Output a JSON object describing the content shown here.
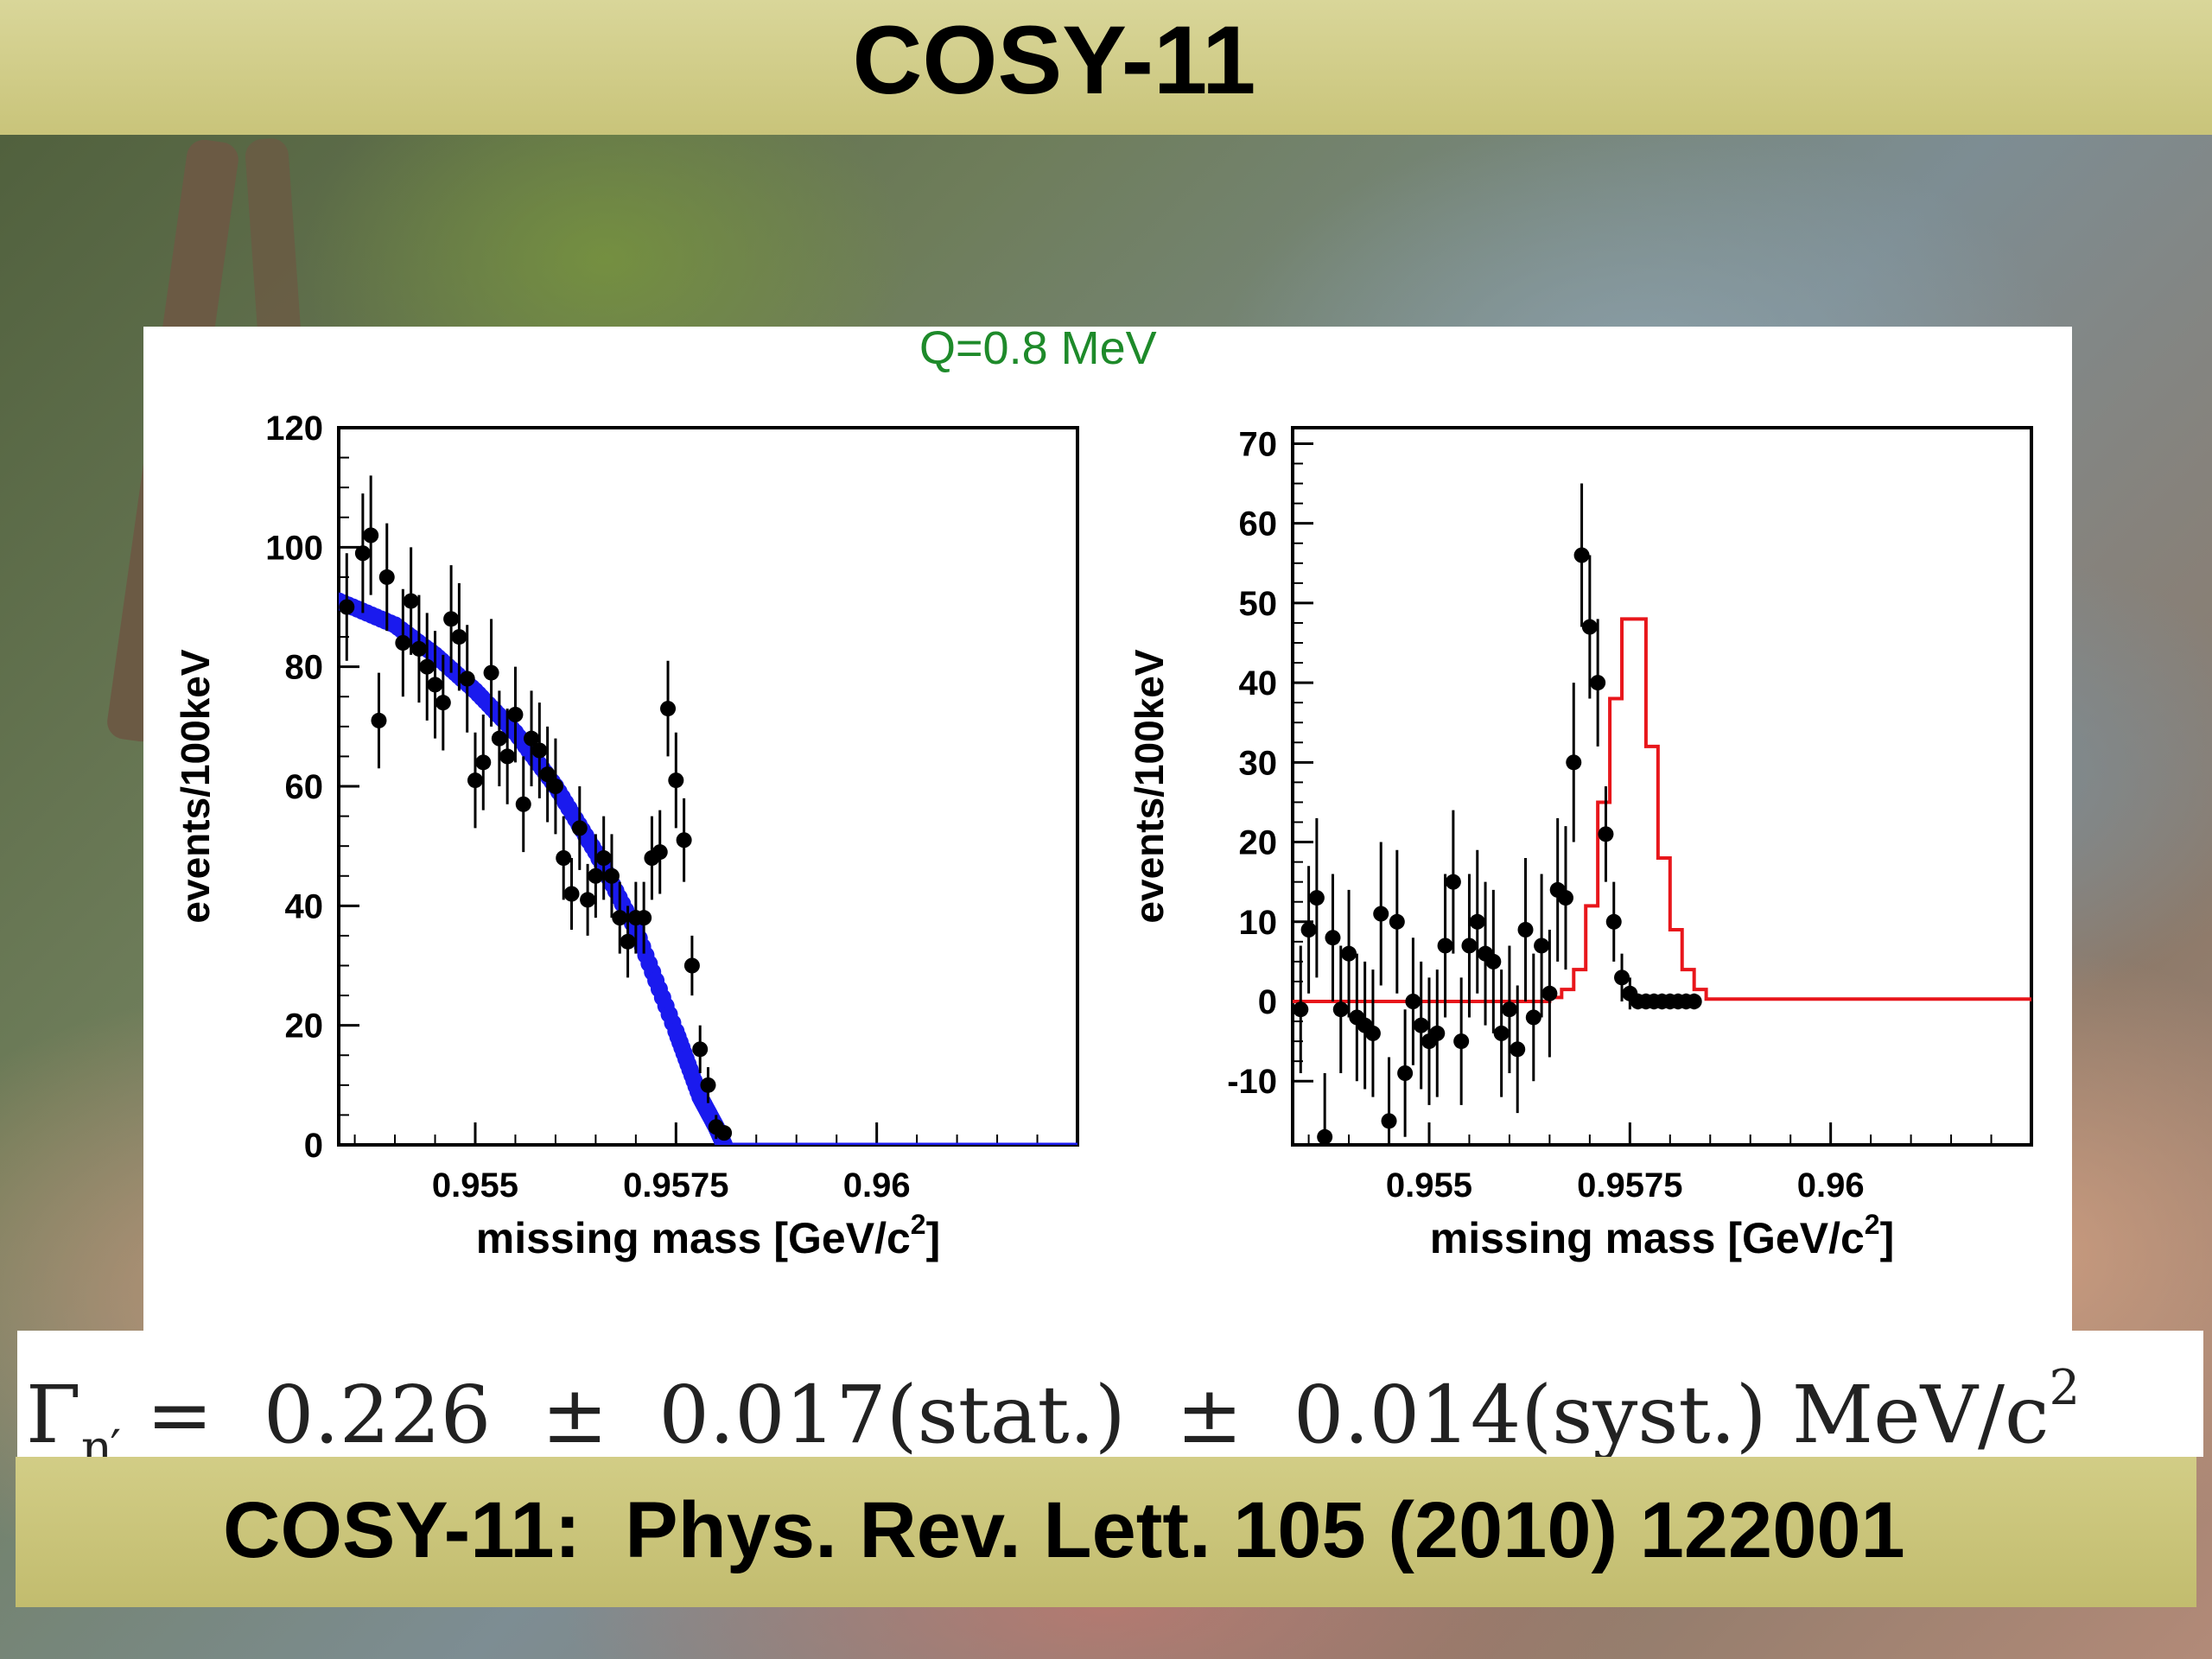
{
  "title": "COSY-11",
  "panel_label": "Q=0.8 MeV",
  "formula": {
    "lhs_symbol": "Γ",
    "lhs_sub": "η′",
    "rhs": "=  0.226  ±  0.017(stat.)  ±  0.014(syst.) MeV/c",
    "rhs_sup": "2"
  },
  "reference": "COSY-11:  Phys. Rev. Lett. 105 (2010) 122001",
  "colors": {
    "title_bar": "#cfcb86",
    "q_label": "#1e8a2a",
    "fit_blue": "#1a1aee",
    "fit_red": "#e8161b",
    "points": "#000000"
  },
  "chart_data": [
    {
      "type": "scatter",
      "ylabel": "events/100keV",
      "xlabel_text": "missing mass [GeV/c",
      "xlabel_sup": "2",
      "xlabel_close": "]",
      "xlim": [
        0.9533,
        0.9625
      ],
      "ylim": [
        0,
        120
      ],
      "xticks": [
        0.955,
        0.9575,
        0.96
      ],
      "xtick_labels": [
        "0.955",
        "0.9575",
        "0.96"
      ],
      "yticks": [
        0,
        20,
        40,
        60,
        80,
        100,
        120
      ],
      "ytick_labels": [
        "0",
        "20",
        "40",
        "60",
        "80",
        "100",
        "120"
      ],
      "series": [
        {
          "kind": "points_with_errors",
          "x": [
            0.9534,
            0.9536,
            0.9537,
            0.9538,
            0.9539,
            0.9541,
            0.9542,
            0.9543,
            0.9544,
            0.9545,
            0.9546,
            0.9547,
            0.9548,
            0.9549,
            0.955,
            0.9551,
            0.9552,
            0.9553,
            0.9554,
            0.9555,
            0.9556,
            0.9557,
            0.9558,
            0.9559,
            0.956,
            0.9561,
            0.9562,
            0.9563,
            0.9564,
            0.9565,
            0.9566,
            0.9567,
            0.9568,
            0.9569,
            0.957,
            0.9571,
            0.9572,
            0.9573,
            0.9574,
            0.9575,
            0.9576,
            0.9577,
            0.9578,
            0.9579,
            0.958,
            0.9581
          ],
          "y": [
            90,
            99,
            102,
            71,
            95,
            84,
            91,
            83,
            80,
            77,
            74,
            88,
            85,
            78,
            61,
            64,
            79,
            68,
            65,
            72,
            57,
            68,
            66,
            62,
            60,
            48,
            42,
            53,
            41,
            45,
            48,
            45,
            38,
            34,
            38,
            38,
            48,
            49,
            73,
            61,
            51,
            30,
            16,
            10,
            3,
            2
          ],
          "err": [
            9,
            10,
            10,
            8,
            9,
            9,
            9,
            9,
            9,
            9,
            8,
            9,
            9,
            9,
            8,
            8,
            9,
            8,
            8,
            8,
            8,
            8,
            8,
            8,
            8,
            7,
            6,
            7,
            6,
            7,
            7,
            7,
            6,
            6,
            6,
            6,
            7,
            7,
            8,
            8,
            7,
            5,
            4,
            3,
            2,
            1
          ]
        },
        {
          "kind": "fit_curve",
          "color": "blue",
          "x": [
            0.9533,
            0.954,
            0.9545,
            0.955,
            0.9555,
            0.956,
            0.9565,
            0.957,
            0.9575,
            0.9578,
            0.958,
            0.9581
          ],
          "y": [
            91,
            87,
            82,
            76,
            69,
            60,
            49,
            36,
            19,
            8,
            3,
            0
          ]
        }
      ]
    },
    {
      "type": "scatter",
      "ylabel": "events/100keV",
      "xlabel_text": "missing mass [GeV/c",
      "xlabel_sup": "2",
      "xlabel_close": "]",
      "xlim": [
        0.9533,
        0.9625
      ],
      "ylim": [
        -18,
        72
      ],
      "xticks": [
        0.955,
        0.9575,
        0.96
      ],
      "xtick_labels": [
        "0.955",
        "0.9575",
        "0.96"
      ],
      "yticks": [
        -10,
        0,
        10,
        20,
        30,
        40,
        50,
        60,
        70
      ],
      "ytick_labels": [
        "-10",
        "0",
        "10",
        "20",
        "30",
        "40",
        "50",
        "60",
        "70"
      ],
      "series": [
        {
          "kind": "points_with_errors",
          "x": [
            0.9534,
            0.9535,
            0.9536,
            0.9537,
            0.9538,
            0.9539,
            0.954,
            0.9541,
            0.9542,
            0.9543,
            0.9544,
            0.9545,
            0.9546,
            0.9547,
            0.9548,
            0.9549,
            0.955,
            0.9551,
            0.9552,
            0.9553,
            0.9554,
            0.9555,
            0.9556,
            0.9557,
            0.9558,
            0.9559,
            0.956,
            0.9561,
            0.9562,
            0.9563,
            0.9564,
            0.9565,
            0.9566,
            0.9567,
            0.9568,
            0.9569,
            0.957,
            0.9571,
            0.9572,
            0.9573,
            0.9574,
            0.9575,
            0.9576,
            0.9577,
            0.9578,
            0.9579,
            0.958,
            0.9581,
            0.9582,
            0.9583
          ],
          "y": [
            -1,
            9,
            13,
            -17,
            8,
            -1,
            6,
            -2,
            -3,
            -4,
            11,
            -15,
            10,
            -9,
            0,
            -3,
            -5,
            -4,
            7,
            15,
            -5,
            7,
            10,
            6,
            5,
            -4,
            -1,
            -6,
            9,
            -2,
            7,
            1,
            14,
            13,
            30,
            56,
            47,
            40,
            21,
            10,
            3,
            1,
            0,
            0,
            0,
            0,
            0,
            0,
            0,
            0
          ],
          "err": [
            8,
            8,
            10,
            8,
            8,
            8,
            8,
            8,
            8,
            8,
            9,
            8,
            9,
            8,
            8,
            8,
            8,
            8,
            9,
            9,
            8,
            9,
            9,
            9,
            9,
            8,
            8,
            8,
            9,
            8,
            9,
            8,
            9,
            9,
            10,
            9,
            9,
            8,
            6,
            5,
            3,
            2,
            1,
            1,
            1,
            1,
            1,
            1,
            1,
            1
          ]
        },
        {
          "kind": "fit_histogram",
          "color": "red",
          "edges": [
            0.9533,
            0.9565,
            0.95665,
            0.9568,
            0.95695,
            0.9571,
            0.95725,
            0.9574,
            0.95755,
            0.9577,
            0.95785,
            0.958,
            0.95815,
            0.9583,
            0.95845,
            0.9625
          ],
          "y": [
            0,
            0.5,
            1.5,
            4,
            12,
            25,
            38,
            48,
            48,
            32,
            18,
            9,
            4,
            1.5,
            0.3,
            0
          ]
        }
      ]
    }
  ]
}
